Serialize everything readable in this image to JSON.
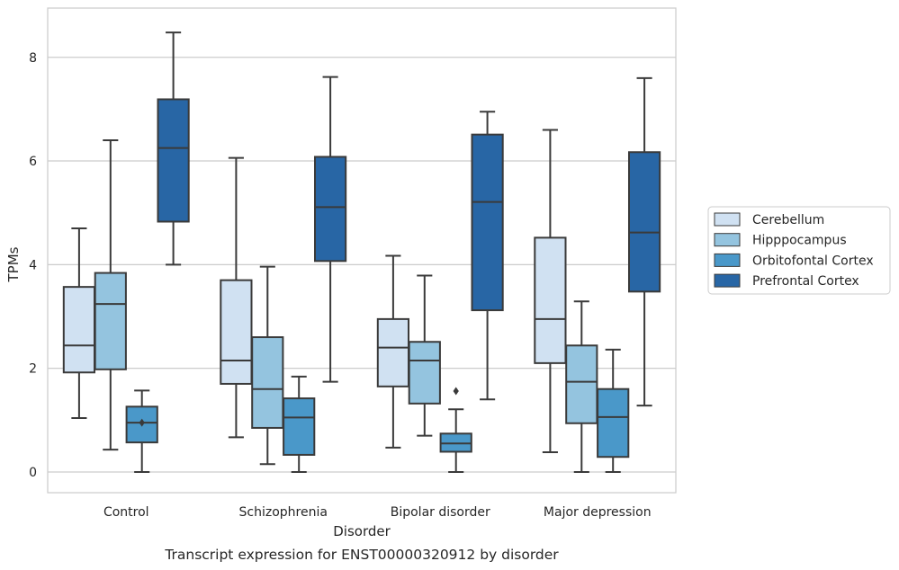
{
  "chart_data": {
    "type": "box",
    "title": "",
    "caption": "Transcript expression for ENST00000320912 by disorder",
    "xlabel": "Disorder",
    "ylabel": "TPMs",
    "ylim": [
      -0.4,
      8.95
    ],
    "yticks": [
      0,
      2,
      4,
      6,
      8
    ],
    "grid": true,
    "legend_position": "right",
    "categories": [
      "Control",
      "Schizophrenia",
      "Bipolar disorder",
      "Major depression"
    ],
    "series": [
      {
        "name": "Cerebellum",
        "color": "#d0e1f2",
        "boxes": [
          {
            "whislo": 1.04,
            "q1": 1.92,
            "med": 2.44,
            "q3": 3.57,
            "whishi": 4.7,
            "fliers": []
          },
          {
            "whislo": 0.67,
            "q1": 1.7,
            "med": 2.15,
            "q3": 3.7,
            "whishi": 6.06,
            "fliers": []
          },
          {
            "whislo": 0.47,
            "q1": 1.65,
            "med": 2.4,
            "q3": 2.95,
            "whishi": 4.17,
            "fliers": []
          },
          {
            "whislo": 0.38,
            "q1": 2.1,
            "med": 2.95,
            "q3": 4.52,
            "whishi": 6.6,
            "fliers": []
          }
        ]
      },
      {
        "name": "Hipppocampus",
        "color": "#94c4df",
        "boxes": [
          {
            "whislo": 0.43,
            "q1": 1.98,
            "med": 3.24,
            "q3": 3.84,
            "whishi": 6.4,
            "fliers": []
          },
          {
            "whislo": 0.15,
            "q1": 0.85,
            "med": 1.6,
            "q3": 2.6,
            "whishi": 3.96,
            "fliers": []
          },
          {
            "whislo": 0.7,
            "q1": 1.32,
            "med": 2.15,
            "q3": 2.51,
            "whishi": 3.79,
            "fliers": []
          },
          {
            "whislo": 0.0,
            "q1": 0.94,
            "med": 1.74,
            "q3": 2.44,
            "whishi": 3.29,
            "fliers": []
          }
        ]
      },
      {
        "name": "Orbitofontal Cortex",
        "color": "#4a98c9",
        "boxes": [
          {
            "whislo": 0.0,
            "q1": 0.57,
            "med": 0.95,
            "q3": 1.26,
            "whishi": 1.57,
            "fliers": [
              0.95
            ]
          },
          {
            "whislo": 0.0,
            "q1": 0.33,
            "med": 1.05,
            "q3": 1.42,
            "whishi": 1.84,
            "fliers": []
          },
          {
            "whislo": 0.0,
            "q1": 0.39,
            "med": 0.55,
            "q3": 0.74,
            "whishi": 1.21,
            "fliers": [
              1.56
            ]
          },
          {
            "whislo": 0.0,
            "q1": 0.29,
            "med": 1.06,
            "q3": 1.6,
            "whishi": 2.36,
            "fliers": []
          }
        ]
      },
      {
        "name": "Prefrontal Cortex",
        "color": "#2866a5",
        "boxes": [
          {
            "whislo": 4.0,
            "q1": 4.83,
            "med": 6.25,
            "q3": 7.19,
            "whishi": 8.48,
            "fliers": []
          },
          {
            "whislo": 1.74,
            "q1": 4.07,
            "med": 5.11,
            "q3": 6.08,
            "whishi": 7.62,
            "fliers": []
          },
          {
            "whislo": 1.4,
            "q1": 3.12,
            "med": 5.21,
            "q3": 6.51,
            "whishi": 6.95,
            "fliers": []
          },
          {
            "whislo": 1.28,
            "q1": 3.48,
            "med": 4.62,
            "q3": 6.17,
            "whishi": 7.6,
            "fliers": []
          }
        ]
      }
    ]
  }
}
